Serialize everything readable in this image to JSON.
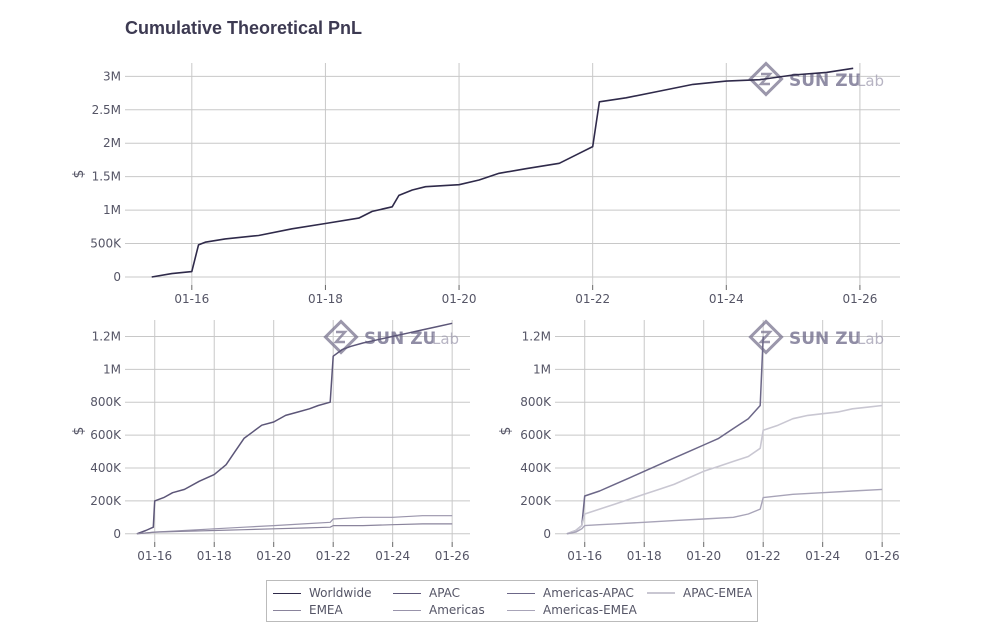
{
  "title": "Cumulative Theoretical PnL",
  "watermark": {
    "text_main": "SUN ZU",
    "text_sub": "Lab"
  },
  "colors": {
    "worldwide": "#2f2a4a",
    "apac": "#5c5678",
    "emea": "#8a849c",
    "americas": "#9994ab",
    "americas_apac": "#6c6788",
    "americas_emea": "#a8a4b8",
    "apac_emea": "#c9c7d2",
    "grid": "#c8c8c8"
  },
  "legend": [
    {
      "key": "worldwide",
      "label": "Worldwide"
    },
    {
      "key": "apac",
      "label": "APAC"
    },
    {
      "key": "americas_apac",
      "label": "Americas-APAC"
    },
    {
      "key": "apac_emea",
      "label": "APAC-EMEA"
    },
    {
      "key": "emea",
      "label": "EMEA"
    },
    {
      "key": "americas",
      "label": "Americas"
    },
    {
      "key": "americas_emea",
      "label": "Americas-EMEA"
    }
  ],
  "chart_data": [
    {
      "type": "line",
      "title": "Cumulative Theoretical PnL",
      "xlabel": "",
      "ylabel": "$",
      "xlim": [
        2015.0,
        2026.6
      ],
      "ylim": [
        -0.12,
        3.2
      ],
      "y_ticks": [
        0,
        0.5,
        1,
        1.5,
        2,
        2.5,
        3
      ],
      "y_tick_labels": [
        "0",
        "500K",
        "1M",
        "1.5M",
        "2M",
        "2.5M",
        "3M"
      ],
      "x_ticks": [
        2016,
        2018,
        2020,
        2022,
        2024,
        2026
      ],
      "x_tick_labels": [
        "01-16",
        "01-18",
        "01-20",
        "01-22",
        "01-24",
        "01-26"
      ],
      "grid": true,
      "units": "millions of $",
      "series": [
        {
          "key": "worldwide",
          "x": [
            2015.4,
            2015.7,
            2016.0,
            2016.1,
            2016.2,
            2016.5,
            2017.0,
            2017.5,
            2018.0,
            2018.5,
            2018.7,
            2019.0,
            2019.1,
            2019.3,
            2019.5,
            2020.0,
            2020.3,
            2020.6,
            2021.0,
            2021.5,
            2021.8,
            2022.0,
            2022.1,
            2022.5,
            2023.0,
            2023.5,
            2024.0,
            2024.5,
            2025.0,
            2025.5,
            2025.9
          ],
          "y": [
            0,
            0.05,
            0.08,
            0.48,
            0.52,
            0.57,
            0.62,
            0.72,
            0.8,
            0.88,
            0.98,
            1.05,
            1.22,
            1.3,
            1.35,
            1.38,
            1.45,
            1.55,
            1.62,
            1.7,
            1.85,
            1.95,
            2.62,
            2.68,
            2.78,
            2.88,
            2.93,
            2.95,
            3.02,
            3.06,
            3.12
          ]
        }
      ]
    },
    {
      "type": "line",
      "xlabel": "",
      "ylabel": "$",
      "xlim": [
        2015.0,
        2026.6
      ],
      "ylim": [
        -0.05,
        1.3
      ],
      "y_ticks": [
        0,
        0.2,
        0.4,
        0.6,
        0.8,
        1.0,
        1.2
      ],
      "y_tick_labels": [
        "0",
        "200K",
        "400K",
        "600K",
        "800K",
        "1M",
        "1.2M"
      ],
      "x_ticks": [
        2016,
        2018,
        2020,
        2022,
        2024,
        2026
      ],
      "x_tick_labels": [
        "01-16",
        "01-18",
        "01-20",
        "01-22",
        "01-24",
        "01-26"
      ],
      "grid": true,
      "units": "millions of $",
      "series": [
        {
          "key": "apac",
          "x": [
            2015.4,
            2015.7,
            2015.95,
            2016.0,
            2016.3,
            2016.6,
            2017.0,
            2017.5,
            2018.0,
            2018.4,
            2018.7,
            2019.0,
            2019.3,
            2019.6,
            2020.0,
            2020.4,
            2020.8,
            2021.2,
            2021.5,
            2021.9,
            2022.0,
            2022.3,
            2022.6,
            2023.0,
            2023.5,
            2024.0,
            2024.5,
            2025.0,
            2025.5,
            2026.0
          ],
          "y": [
            0,
            0.02,
            0.04,
            0.2,
            0.22,
            0.25,
            0.27,
            0.32,
            0.36,
            0.42,
            0.5,
            0.58,
            0.62,
            0.66,
            0.68,
            0.72,
            0.74,
            0.76,
            0.78,
            0.8,
            1.08,
            1.12,
            1.14,
            1.16,
            1.18,
            1.2,
            1.22,
            1.24,
            1.26,
            1.28
          ]
        },
        {
          "key": "americas",
          "x": [
            2015.4,
            2016.0,
            2017.0,
            2018.0,
            2019.0,
            2020.0,
            2021.0,
            2021.9,
            2022.0,
            2023.0,
            2024.0,
            2025.0,
            2026.0
          ],
          "y": [
            0,
            0.01,
            0.02,
            0.03,
            0.04,
            0.05,
            0.06,
            0.07,
            0.09,
            0.1,
            0.1,
            0.11,
            0.11
          ]
        },
        {
          "key": "emea",
          "x": [
            2015.4,
            2016.0,
            2017.0,
            2018.0,
            2019.0,
            2020.0,
            2021.0,
            2021.9,
            2022.0,
            2023.0,
            2024.0,
            2025.0,
            2026.0
          ],
          "y": [
            0,
            0.01,
            0.015,
            0.02,
            0.025,
            0.03,
            0.035,
            0.04,
            0.05,
            0.05,
            0.055,
            0.06,
            0.06
          ]
        }
      ]
    },
    {
      "type": "line",
      "xlabel": "",
      "ylabel": "$",
      "xlim": [
        2015.0,
        2026.6
      ],
      "ylim": [
        -0.05,
        1.3
      ],
      "y_ticks": [
        0,
        0.2,
        0.4,
        0.6,
        0.8,
        1.0,
        1.2
      ],
      "y_tick_labels": [
        "0",
        "200K",
        "400K",
        "600K",
        "800K",
        "1M",
        "1.2M"
      ],
      "x_ticks": [
        2016,
        2018,
        2020,
        2022,
        2024,
        2026
      ],
      "x_tick_labels": [
        "01-16",
        "01-18",
        "01-20",
        "01-22",
        "01-24",
        "01-26"
      ],
      "grid": true,
      "units": "millions of $",
      "series": [
        {
          "key": "americas_apac",
          "x": [
            2015.4,
            2015.7,
            2015.9,
            2016.0,
            2016.5,
            2017.0,
            2017.5,
            2018.0,
            2018.5,
            2019.0,
            2019.5,
            2020.0,
            2020.5,
            2021.0,
            2021.5,
            2021.9,
            2022.0
          ],
          "y": [
            0,
            0.02,
            0.05,
            0.23,
            0.26,
            0.3,
            0.34,
            0.38,
            0.42,
            0.46,
            0.5,
            0.54,
            0.58,
            0.64,
            0.7,
            0.78,
            1.2
          ]
        },
        {
          "key": "apac_emea",
          "x": [
            2015.4,
            2015.7,
            2015.9,
            2016.0,
            2016.5,
            2017.0,
            2017.5,
            2018.0,
            2018.5,
            2019.0,
            2019.5,
            2020.0,
            2020.5,
            2021.0,
            2021.5,
            2021.9,
            2022.0,
            2022.5,
            2023.0,
            2023.5,
            2024.0,
            2024.5,
            2025.0,
            2025.5,
            2026.0
          ],
          "y": [
            0,
            0.02,
            0.05,
            0.12,
            0.15,
            0.18,
            0.21,
            0.24,
            0.27,
            0.3,
            0.34,
            0.38,
            0.41,
            0.44,
            0.47,
            0.52,
            0.63,
            0.66,
            0.7,
            0.72,
            0.73,
            0.74,
            0.76,
            0.77,
            0.78
          ]
        },
        {
          "key": "americas_emea",
          "x": [
            2015.4,
            2015.7,
            2015.9,
            2016.0,
            2016.5,
            2017.0,
            2018.0,
            2019.0,
            2020.0,
            2021.0,
            2021.5,
            2021.9,
            2022.0,
            2023.0,
            2024.0,
            2025.0,
            2026.0
          ],
          "y": [
            0,
            0.01,
            0.03,
            0.05,
            0.055,
            0.06,
            0.07,
            0.08,
            0.09,
            0.1,
            0.12,
            0.15,
            0.22,
            0.24,
            0.25,
            0.26,
            0.27
          ]
        }
      ]
    }
  ]
}
